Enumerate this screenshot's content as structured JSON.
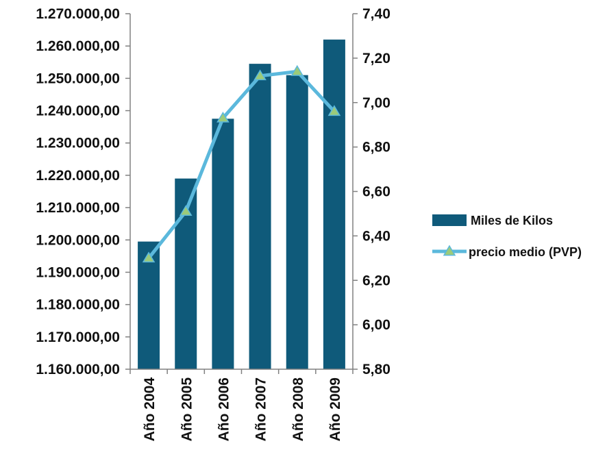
{
  "chart_data": {
    "type": "bar",
    "title": "",
    "xlabel": "",
    "ylabel": "",
    "categories": [
      "Año 2004",
      "Año 2005",
      "Año 2006",
      "Año 2007",
      "Año 2008",
      "Año 2009"
    ],
    "series": [
      {
        "name": "Miles de Kilos",
        "type": "bar",
        "axis": "left",
        "color": "#0f5a7a",
        "values": [
          1199500,
          1219000,
          1237500,
          1254500,
          1251000,
          1262000
        ]
      },
      {
        "name": "precio medio (PVP)",
        "type": "line",
        "axis": "right",
        "color": "#5bb8dc",
        "marker_color": "#9ccb7a",
        "marker": "triangle",
        "values": [
          6.3,
          6.51,
          6.93,
          7.12,
          7.14,
          6.96
        ]
      }
    ],
    "y_left": {
      "min": 1160000,
      "max": 1270000,
      "step": 10000,
      "tick_labels": [
        "1.160.000,00",
        "1.170.000,00",
        "1.180.000,00",
        "1.190.000,00",
        "1.200.000,00",
        "1.210.000,00",
        "1.220.000,00",
        "1.230.000,00",
        "1.240.000,00",
        "1.250.000,00",
        "1.260.000,00",
        "1.270.000,00"
      ]
    },
    "y_right": {
      "min": 5.8,
      "max": 7.4,
      "step": 0.2,
      "tick_labels": [
        "5,80",
        "6,00",
        "6,20",
        "6,40",
        "6,60",
        "6,80",
        "7,00",
        "7,20",
        "7,40"
      ]
    },
    "grid": false,
    "legend": {
      "position": "right",
      "entries": [
        "Miles de Kilos",
        "precio medio (PVP)"
      ]
    }
  }
}
